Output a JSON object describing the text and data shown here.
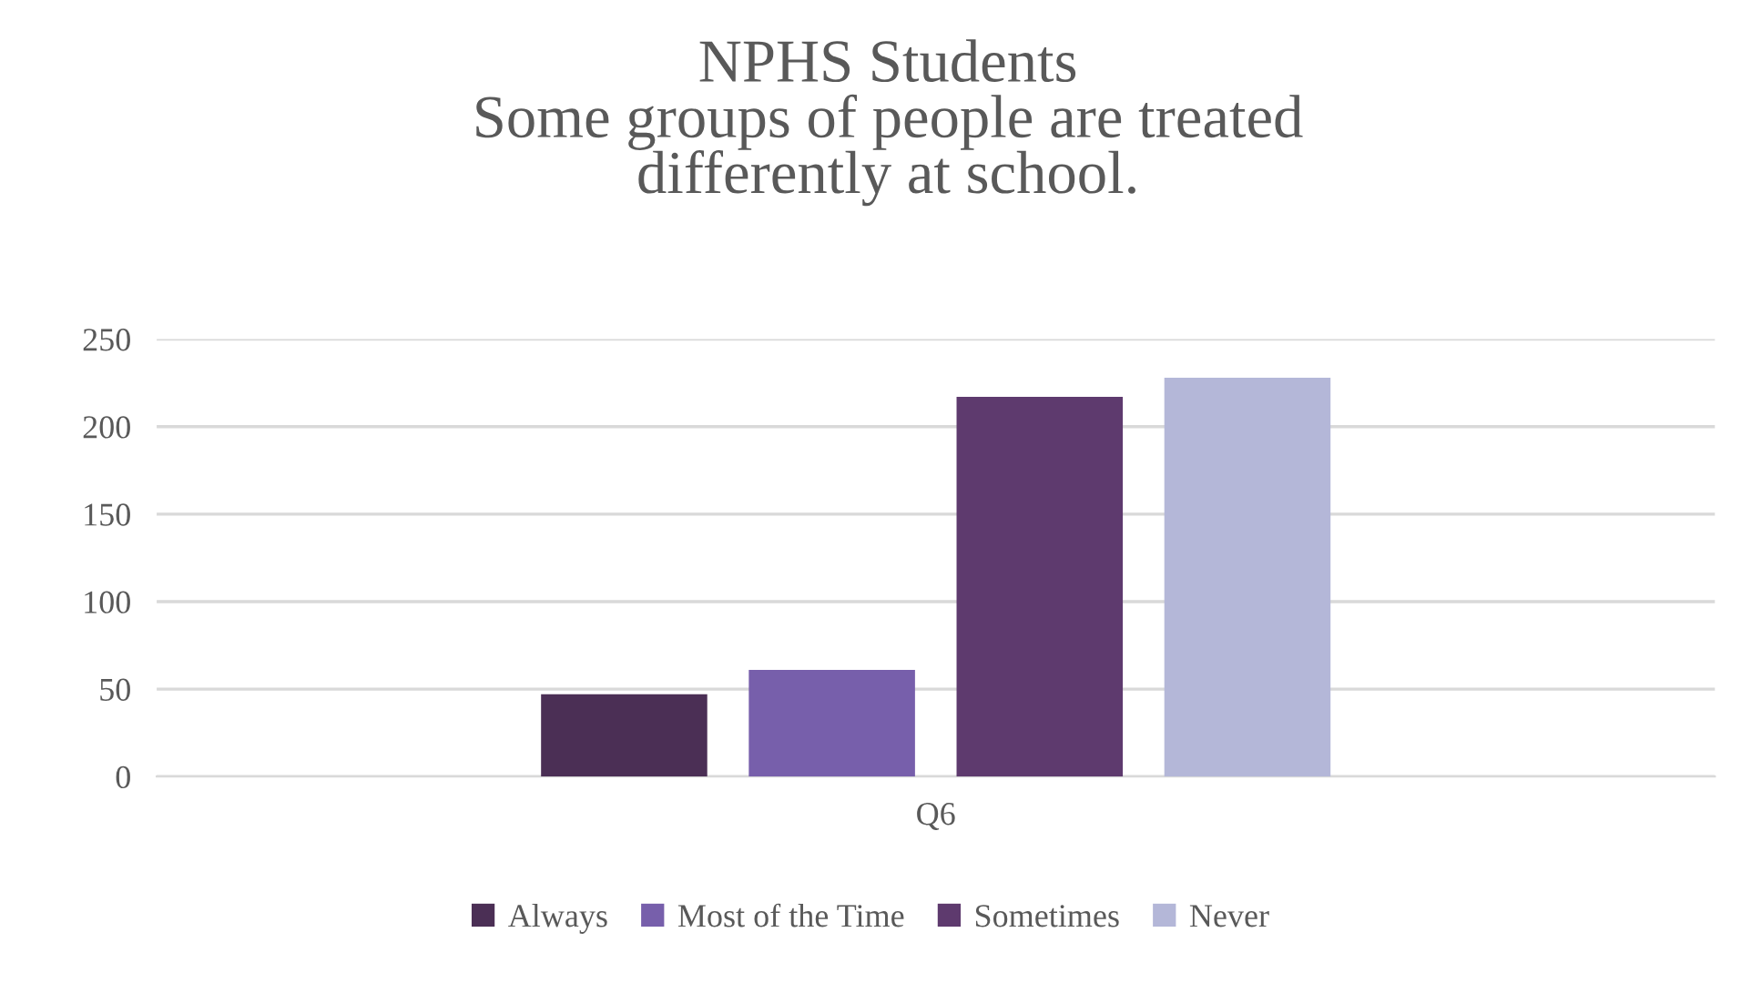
{
  "chart_data": {
    "type": "bar",
    "title": "NPHS Students\nSome groups of people are treated\ndifferently at school.",
    "categories": [
      "Q6"
    ],
    "series": [
      {
        "name": "Always",
        "color": "#4b2f55",
        "values": [
          47
        ]
      },
      {
        "name": "Most of the Time",
        "color": "#775fab",
        "values": [
          61
        ]
      },
      {
        "name": "Sometimes",
        "color": "#5e3a6e",
        "values": [
          217
        ]
      },
      {
        "name": "Never",
        "color": "#b4b7d8",
        "values": [
          228
        ]
      }
    ],
    "ylim": [
      0,
      250
    ],
    "yticks": [
      0,
      50,
      100,
      150,
      200,
      250
    ],
    "grid": "y",
    "legend": "bottom"
  }
}
